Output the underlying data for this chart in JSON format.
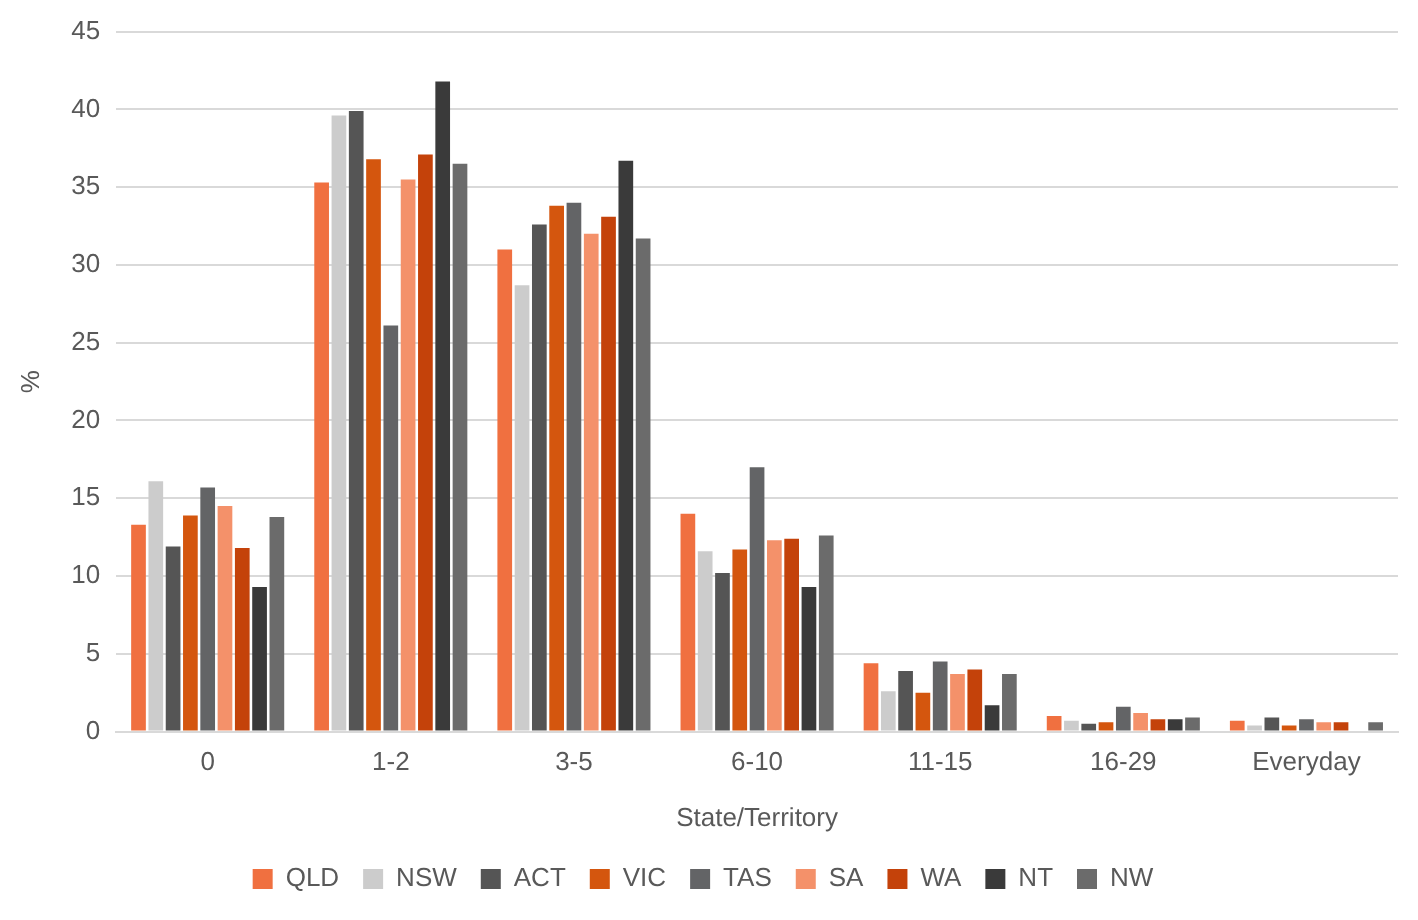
{
  "chart_data": {
    "type": "bar",
    "xlabel": "State/Territory",
    "ylabel": "%",
    "categories": [
      "0",
      "1-2",
      "3-5",
      "6-10",
      "11-15",
      "16-29",
      "Everyday"
    ],
    "series": [
      {
        "name": "QLD",
        "color": "#f07040",
        "values": [
          13.3,
          35.3,
          31.0,
          14.0,
          4.4,
          1.0,
          0.7
        ]
      },
      {
        "name": "NSW",
        "color": "#cccccc",
        "values": [
          16.1,
          39.6,
          28.7,
          11.6,
          2.6,
          0.7,
          0.4
        ]
      },
      {
        "name": "ACT",
        "color": "#555555",
        "values": [
          11.9,
          39.9,
          32.6,
          10.2,
          3.9,
          0.5,
          0.9
        ]
      },
      {
        "name": "VIC",
        "color": "#d4560e",
        "values": [
          13.9,
          36.8,
          33.8,
          11.7,
          2.5,
          0.6,
          0.4
        ]
      },
      {
        "name": "TAS",
        "color": "#636466",
        "values": [
          15.7,
          26.1,
          34.0,
          17.0,
          4.5,
          1.6,
          0.8
        ]
      },
      {
        "name": "SA",
        "color": "#f4916a",
        "values": [
          14.5,
          35.5,
          32.0,
          12.3,
          3.7,
          1.2,
          0.6
        ]
      },
      {
        "name": "WA",
        "color": "#c4420a",
        "values": [
          11.8,
          37.1,
          33.1,
          12.4,
          4.0,
          0.8,
          0.6
        ]
      },
      {
        "name": "NT",
        "color": "#3a3a3a",
        "values": [
          9.3,
          41.8,
          36.7,
          9.3,
          1.7,
          0.8,
          0
        ]
      },
      {
        "name": "NW",
        "color": "#6b6b6b",
        "values": [
          13.8,
          36.5,
          31.7,
          12.6,
          3.7,
          0.9,
          0.6
        ]
      }
    ],
    "ylim": [
      0,
      45
    ],
    "yticks": [
      0,
      5,
      10,
      15,
      20,
      25,
      30,
      35,
      40,
      45
    ],
    "grid": "y",
    "legend": "bottom"
  }
}
